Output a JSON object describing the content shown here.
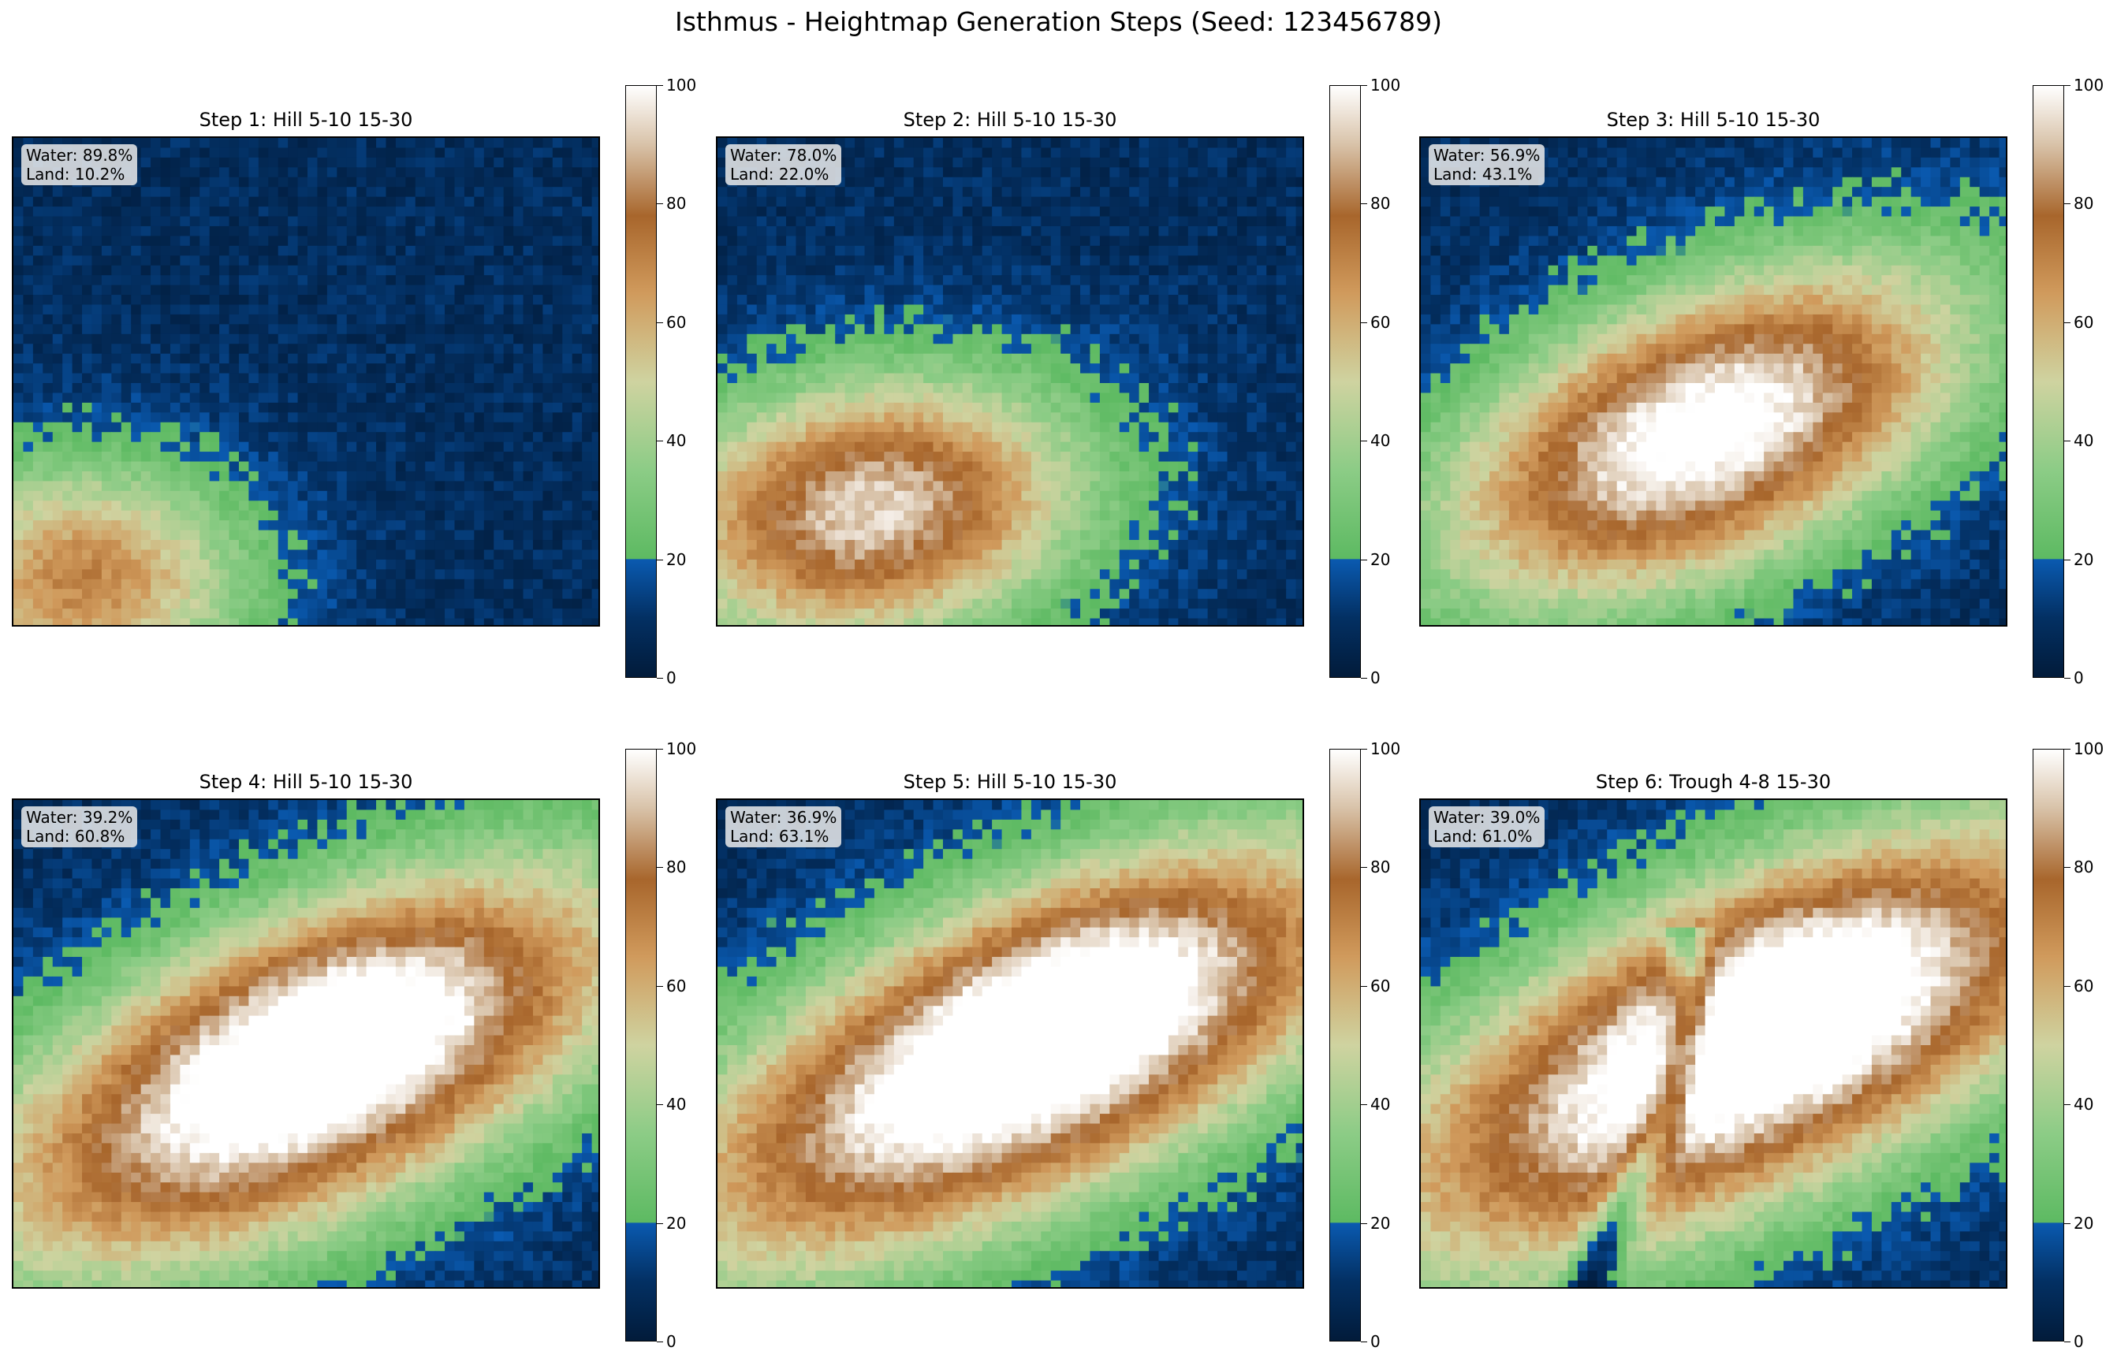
{
  "suptitle": "Isthmus - Heightmap Generation Steps (Seed: 123456789)",
  "colormap": {
    "name": "gist_earth-like terrain",
    "stops": [
      {
        "v": 0,
        "c": "#021b3a"
      },
      {
        "v": 10,
        "c": "#033063"
      },
      {
        "v": 19.9,
        "c": "#0a5ab0"
      },
      {
        "v": 20,
        "c": "#5dba62"
      },
      {
        "v": 35,
        "c": "#8ccc86"
      },
      {
        "v": 50,
        "c": "#cfd3a0"
      },
      {
        "v": 65,
        "c": "#d09a5c"
      },
      {
        "v": 78,
        "c": "#a8662c"
      },
      {
        "v": 90,
        "c": "#d8c2a8"
      },
      {
        "v": 100,
        "c": "#ffffff"
      }
    ]
  },
  "chart_data": [
    {
      "type": "heatmap",
      "title": "Step 1: Hill 5-10 15-30",
      "stats": [
        "Water: 89.8%",
        "Land: 10.2%"
      ],
      "colorbar": {
        "range": [
          0,
          100
        ],
        "ticks": [
          0,
          20,
          40,
          60,
          80,
          100
        ]
      }
    },
    {
      "type": "heatmap",
      "title": "Step 2: Hill 5-10 15-30",
      "stats": [
        "Water: 78.0%",
        "Land: 22.0%"
      ],
      "colorbar": {
        "range": [
          0,
          100
        ],
        "ticks": [
          0,
          20,
          40,
          60,
          80,
          100
        ]
      }
    },
    {
      "type": "heatmap",
      "title": "Step 3: Hill 5-10 15-30",
      "stats": [
        "Water: 56.9%",
        "Land: 43.1%"
      ],
      "colorbar": {
        "range": [
          0,
          100
        ],
        "ticks": [
          0,
          20,
          40,
          60,
          80,
          100
        ]
      }
    },
    {
      "type": "heatmap",
      "title": "Step 4: Hill 5-10 15-30",
      "stats": [
        "Water: 39.2%",
        "Land: 60.8%"
      ],
      "colorbar": {
        "range": [
          0,
          100
        ],
        "ticks": [
          0,
          20,
          40,
          60,
          80,
          100
        ]
      }
    },
    {
      "type": "heatmap",
      "title": "Step 5: Hill 5-10 15-30",
      "stats": [
        "Water: 36.9%",
        "Land: 63.1%"
      ],
      "colorbar": {
        "range": [
          0,
          100
        ],
        "ticks": [
          0,
          20,
          40,
          60,
          80,
          100
        ]
      }
    },
    {
      "type": "heatmap",
      "title": "Step 6: Trough 4-8 15-30",
      "stats": [
        "Water: 39.0%",
        "Land: 61.0%"
      ],
      "colorbar": {
        "range": [
          0,
          100
        ],
        "ticks": [
          0,
          20,
          40,
          60,
          80,
          100
        ]
      }
    }
  ]
}
